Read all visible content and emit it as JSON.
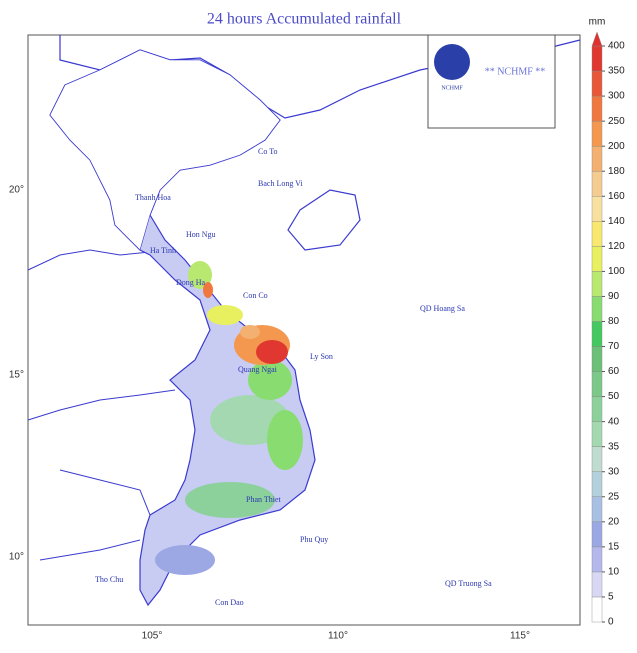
{
  "title": "24 hours Accumulated rainfall",
  "logo_text": "** NCHMF **",
  "logo_caption": "NCHMF",
  "axes": {
    "lon_labels": [
      "105°",
      "110°",
      "115°"
    ],
    "lat_labels": [
      "20°",
      "15°",
      "10°"
    ]
  },
  "places": [
    "Co To",
    "Bach Long Vi",
    "Thanh Hoa",
    "Hon Ngu",
    "Ha Tinh",
    "Con Co",
    "Dong Ha",
    "Ly Son",
    "Quang Ngai",
    "QD Hoang Sa",
    "Phan Thiet",
    "Phu Quy",
    "Tho Chu",
    "Con Dao",
    "QD Truong Sa"
  ],
  "colorbar": {
    "unit": "mm",
    "ticks": [
      0,
      5,
      10,
      15,
      20,
      25,
      30,
      35,
      40,
      50,
      60,
      70,
      80,
      90,
      100,
      120,
      140,
      160,
      180,
      200,
      250,
      300,
      350,
      400
    ],
    "colors": [
      "#ffffff",
      "#d8d8f4",
      "#b4b8ec",
      "#9ca8e4",
      "#a8c0e4",
      "#b4d0dc",
      "#c0dcd0",
      "#a4d8b0",
      "#8cd09c",
      "#7cc888",
      "#6cc078",
      "#44c860",
      "#88dc70",
      "#b8e870",
      "#e8f060",
      "#f8e870",
      "#f8e0a0",
      "#f4cc90",
      "#f4b070",
      "#f49850",
      "#f07840",
      "#e85838",
      "#e03830"
    ],
    "top_color": "#e03030"
  }
}
